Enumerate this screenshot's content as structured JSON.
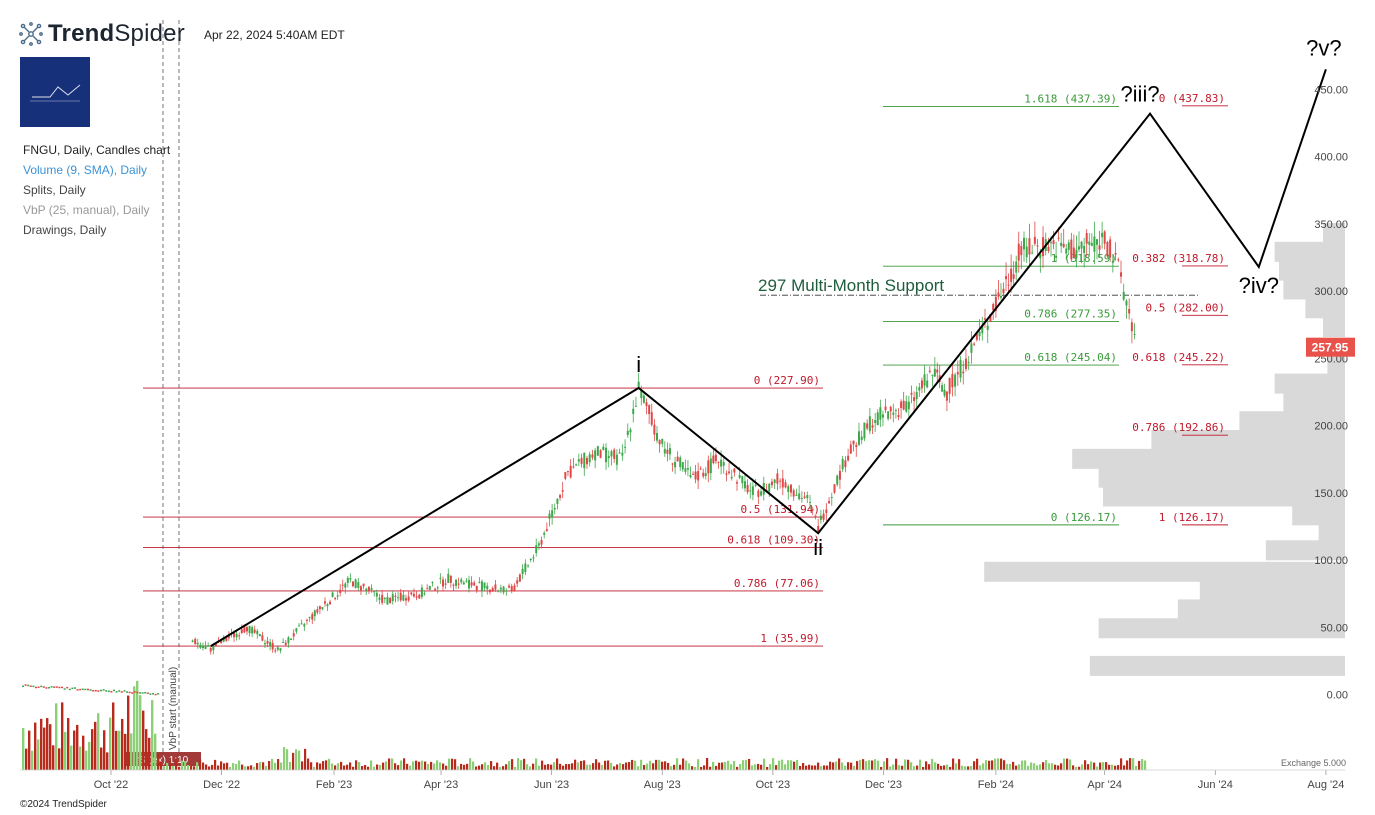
{
  "header": {
    "logo_bold": "Trend",
    "logo_light": "Spider",
    "timestamp": "Apr 22, 2024 5:40AM EDT"
  },
  "legend": {
    "title": "FNGU, Daily, Candles chart",
    "volume": "Volume (9, SMA), Daily",
    "splits": "Splits, Daily",
    "vbp": "VbP (25, manual), Daily",
    "drawings": "Drawings, Daily"
  },
  "colors": {
    "up": "#3da84a",
    "down": "#e04848",
    "fib_red": "#c0192b",
    "fib_green": "#3a9a3a",
    "vbp": "#d9d9d9",
    "last_price_bg": "#e8524a",
    "brand": "#17307a",
    "support_text": "#1f5d3c"
  },
  "copyright": "©2024 TrendSpider",
  "chart_data": {
    "type": "candlestick",
    "symbol": "FNGU",
    "interval": "Daily",
    "x_ticks": [
      "Oct '22",
      "Dec '22",
      "Feb '23",
      "Apr '23",
      "Jun '23",
      "Aug '23",
      "Oct '23",
      "Dec '23",
      "Feb '24",
      "Apr '24",
      "Jun '24",
      "Aug '24"
    ],
    "y_ticks": [
      "0.00",
      "50.00",
      "100.00",
      "150.00",
      "200.00",
      "250.00",
      "300.00",
      "350.00",
      "400.00",
      "450.00"
    ],
    "ylim": [
      0,
      470
    ],
    "last_price": "257.95",
    "extra_axis_label": "Exchange 5.000",
    "price_path": [
      [
        "2022-11-15",
        40
      ],
      [
        "2022-11-25",
        34
      ],
      [
        "2022-12-15",
        50
      ],
      [
        "2023-01-01",
        33
      ],
      [
        "2023-01-20",
        58
      ],
      [
        "2023-02-10",
        85
      ],
      [
        "2023-03-01",
        70
      ],
      [
        "2023-03-20",
        75
      ],
      [
        "2023-04-05",
        86
      ],
      [
        "2023-04-25",
        80
      ],
      [
        "2023-05-10",
        77
      ],
      [
        "2023-05-25",
        110
      ],
      [
        "2023-06-10",
        165
      ],
      [
        "2023-06-25",
        180
      ],
      [
        "2023-07-10",
        175
      ],
      [
        "2023-07-19",
        228
      ],
      [
        "2023-08-01",
        185
      ],
      [
        "2023-08-18",
        160
      ],
      [
        "2023-09-01",
        175
      ],
      [
        "2023-09-20",
        150
      ],
      [
        "2023-10-05",
        160
      ],
      [
        "2023-10-20",
        145
      ],
      [
        "2023-10-26",
        125
      ],
      [
        "2023-11-10",
        175
      ],
      [
        "2023-11-25",
        205
      ],
      [
        "2023-12-15",
        215
      ],
      [
        "2023-12-28",
        240
      ],
      [
        "2024-01-05",
        225
      ],
      [
        "2024-01-20",
        260
      ],
      [
        "2024-02-01",
        290
      ],
      [
        "2024-02-15",
        330
      ],
      [
        "2024-03-01",
        335
      ],
      [
        "2024-03-15",
        330
      ],
      [
        "2024-04-01",
        340
      ],
      [
        "2024-04-10",
        310
      ],
      [
        "2024-04-19",
        258
      ]
    ],
    "volume_bars_note": "volume histogram (9 SMA)",
    "waves": {
      "points": [
        [
          "2022-11-25",
          36
        ],
        [
          "2023-07-19",
          228
        ],
        [
          "2023-10-26",
          120
        ],
        [
          "2024-04-26",
          432
        ],
        [
          "2024-06-25",
          318
        ],
        [
          "2024-08-01",
          465
        ]
      ],
      "labels": [
        "i",
        "ii",
        "?iii?",
        "?iv?",
        "?v?"
      ]
    },
    "fib_set_1": {
      "levels": [
        {
          "label": "0 (227.90)",
          "value": 227.9
        },
        {
          "label": "0.5 (131.94)",
          "value": 131.94
        },
        {
          "label": "0.618 (109.30)",
          "value": 109.3
        },
        {
          "label": "0.786 (77.06)",
          "value": 77.06
        },
        {
          "label": "1 (35.99)",
          "value": 35.99
        }
      ]
    },
    "fib_set_2": {
      "levels": [
        {
          "label": "1.618 (437.39)",
          "value": 437.39
        },
        {
          "label": "1 (318.59)",
          "value": 318.59
        },
        {
          "label": "0.786 (277.35)",
          "value": 277.35
        },
        {
          "label": "0.618 (245.04)",
          "value": 245.04
        },
        {
          "label": "0 (126.17)",
          "value": 126.17
        }
      ]
    },
    "fib_set_3": {
      "levels": [
        {
          "label": "0 (437.83)",
          "value": 437.83
        },
        {
          "label": "0.382 (318.78)",
          "value": 318.78
        },
        {
          "label": "0.5 (282.00)",
          "value": 282.0
        },
        {
          "label": "0.618 (245.22)",
          "value": 245.22
        },
        {
          "label": "0.786 (192.86)",
          "value": 192.86
        },
        {
          "label": "1 (126.17)",
          "value": 126.17
        }
      ]
    },
    "support": {
      "label": "297 Multi-Month Support",
      "value": 297
    },
    "vbp_start_label": "VbP start (manual)",
    "split_label": "rS (ex) 1:10",
    "volume_profile": [
      {
        "price": 22,
        "share": 0.58
      },
      {
        "price": 50,
        "share": 0.56
      },
      {
        "price": 64,
        "share": 0.38
      },
      {
        "price": 78,
        "share": 0.33
      },
      {
        "price": 92,
        "share": 0.82
      },
      {
        "price": 108,
        "share": 0.18
      },
      {
        "price": 120,
        "share": 0.06
      },
      {
        "price": 134,
        "share": 0.12
      },
      {
        "price": 148,
        "share": 0.55
      },
      {
        "price": 162,
        "share": 0.56
      },
      {
        "price": 176,
        "share": 0.62
      },
      {
        "price": 190,
        "share": 0.44
      },
      {
        "price": 204,
        "share": 0.24
      },
      {
        "price": 218,
        "share": 0.14
      },
      {
        "price": 232,
        "share": 0.16
      },
      {
        "price": 246,
        "share": 0.04
      },
      {
        "price": 274,
        "share": 0.05
      },
      {
        "price": 288,
        "share": 0.09
      },
      {
        "price": 302,
        "share": 0.14
      },
      {
        "price": 316,
        "share": 0.15
      },
      {
        "price": 330,
        "share": 0.16
      },
      {
        "price": 344,
        "share": 0.05
      }
    ]
  }
}
